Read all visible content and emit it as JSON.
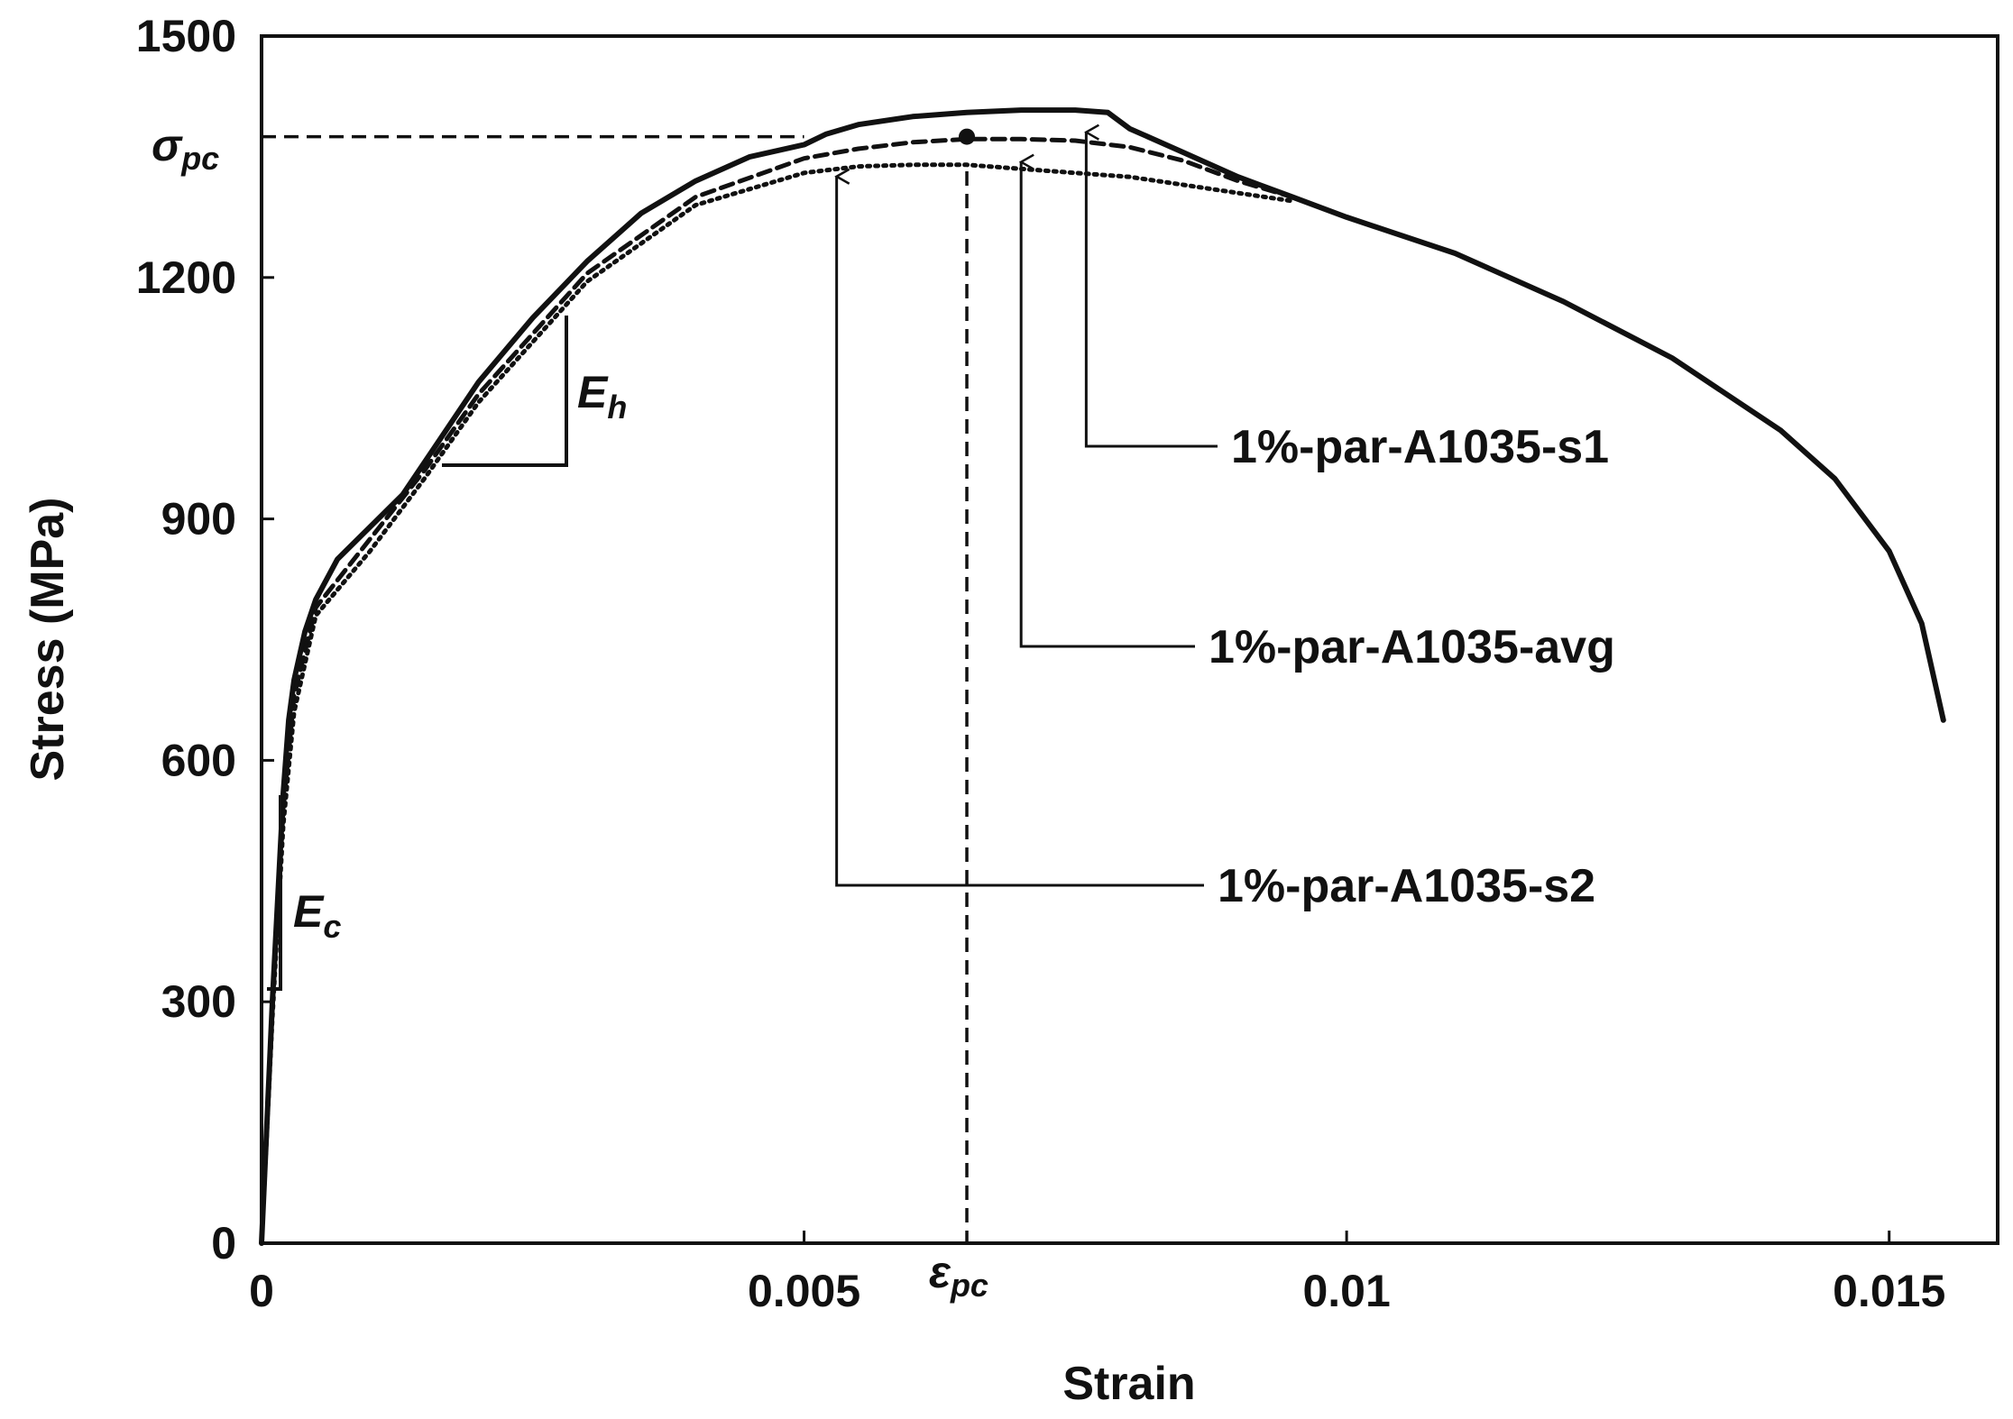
{
  "chart_data": {
    "type": "line",
    "title": "",
    "xlabel": "Strain",
    "ylabel": "Stress (MPa)",
    "xlim": [
      0,
      0.016
    ],
    "ylim": [
      0,
      1500
    ],
    "x_ticks": [
      0,
      0.005,
      0.01,
      0.015
    ],
    "x_tick_labels": [
      "0",
      "0.005",
      "0.01",
      "0.015"
    ],
    "y_ticks": [
      0,
      300,
      600,
      900,
      1200,
      1500
    ],
    "y_tick_labels": [
      "0",
      "300",
      "600",
      "900",
      "1200",
      "1500"
    ],
    "grid": false,
    "series": [
      {
        "name": "1%-par-A1035-s1",
        "style": "solid",
        "x": [
          0,
          0.0001,
          0.0002,
          0.00025,
          0.0003,
          0.0004,
          0.0005,
          0.0007,
          0.001,
          0.0013,
          0.0016,
          0.002,
          0.0025,
          0.003,
          0.0035,
          0.004,
          0.0045,
          0.005,
          0.0052,
          0.0055,
          0.006,
          0.0065,
          0.007,
          0.0075,
          0.0078,
          0.008,
          0.0085,
          0.009,
          0.0095,
          0.01,
          0.011,
          0.012,
          0.013,
          0.014,
          0.0145,
          0.015,
          0.0153,
          0.0155
        ],
        "y": [
          0,
          300,
          560,
          650,
          700,
          760,
          800,
          850,
          890,
          930,
          990,
          1070,
          1150,
          1220,
          1280,
          1320,
          1350,
          1365,
          1378,
          1390,
          1400,
          1405,
          1408,
          1408,
          1405,
          1385,
          1355,
          1325,
          1300,
          1275,
          1230,
          1170,
          1100,
          1010,
          950,
          860,
          770,
          650
        ]
      },
      {
        "name": "1%-par-A1035-avg",
        "style": "dashed",
        "x": [
          0,
          0.0001,
          0.0002,
          0.0003,
          0.0005,
          0.001,
          0.0015,
          0.002,
          0.003,
          0.004,
          0.005,
          0.0055,
          0.006,
          0.0065,
          0.007,
          0.0075,
          0.008,
          0.0085,
          0.009,
          0.0095
        ],
        "y": [
          0,
          290,
          540,
          680,
          790,
          875,
          960,
          1055,
          1205,
          1300,
          1348,
          1360,
          1368,
          1372,
          1372,
          1370,
          1362,
          1345,
          1320,
          1300
        ]
      },
      {
        "name": "1%-par-A1035-s2",
        "style": "dotted",
        "x": [
          0,
          0.0001,
          0.0002,
          0.0003,
          0.0005,
          0.001,
          0.0015,
          0.002,
          0.003,
          0.004,
          0.005,
          0.0055,
          0.006,
          0.0065,
          0.007,
          0.0075,
          0.008,
          0.0085,
          0.009,
          0.0095
        ],
        "y": [
          0,
          280,
          520,
          660,
          780,
          860,
          950,
          1045,
          1195,
          1290,
          1330,
          1338,
          1340,
          1340,
          1335,
          1330,
          1325,
          1315,
          1305,
          1295
        ]
      }
    ],
    "reference_lines": {
      "sigma_pc": 1375,
      "epsilon_pc": 0.0065
    },
    "annotations": [
      {
        "label": "σ",
        "sub": "pc",
        "meaning": "peak compressive stress"
      },
      {
        "label": "ε",
        "sub": "pc",
        "meaning": "strain at peak stress"
      },
      {
        "label": "E",
        "sub": "h",
        "meaning": "hardening modulus"
      },
      {
        "label": "E",
        "sub": "c",
        "meaning": "initial modulus"
      }
    ]
  }
}
